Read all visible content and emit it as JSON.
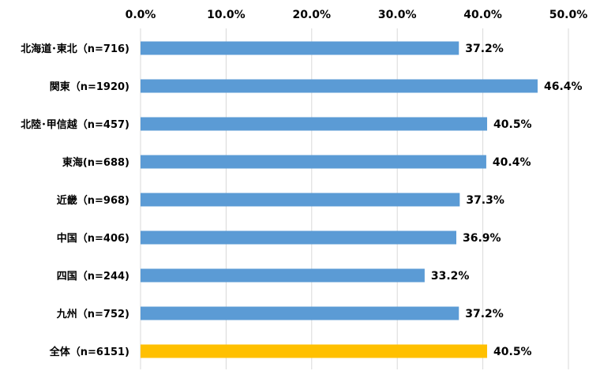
{
  "chart_data": {
    "type": "bar",
    "orientation": "horizontal",
    "categories": [
      "北海道･東北（n=716)",
      "関東（n=1920)",
      "北陸･甲信越（n=457)",
      "東海(n=688)",
      "近畿（n=968)",
      "中国（n=406)",
      "四国（n=244)",
      "九州（n=752)",
      "全体（n=6151)"
    ],
    "values": [
      37.2,
      46.4,
      40.5,
      40.4,
      37.3,
      36.9,
      33.2,
      37.2,
      40.5
    ],
    "data_labels": [
      "37.2%",
      "46.4%",
      "40.5%",
      "40.4%",
      "37.3%",
      "36.9%",
      "33.2%",
      "37.2%",
      "40.5%"
    ],
    "x_ticks": [
      0,
      10,
      20,
      30,
      40,
      50
    ],
    "x_tick_labels": [
      "0.0%",
      "10.0%",
      "20.0%",
      "30.0%",
      "40.0%",
      "50.0%"
    ],
    "xlim": [
      0,
      50
    ],
    "x_axis_position": "top",
    "grid": true,
    "legend": "none",
    "colors": {
      "bar": "#5b9bd5",
      "highlight": "#ffc000",
      "grid": "#d9d9d9"
    },
    "highlight_index": 8
  }
}
